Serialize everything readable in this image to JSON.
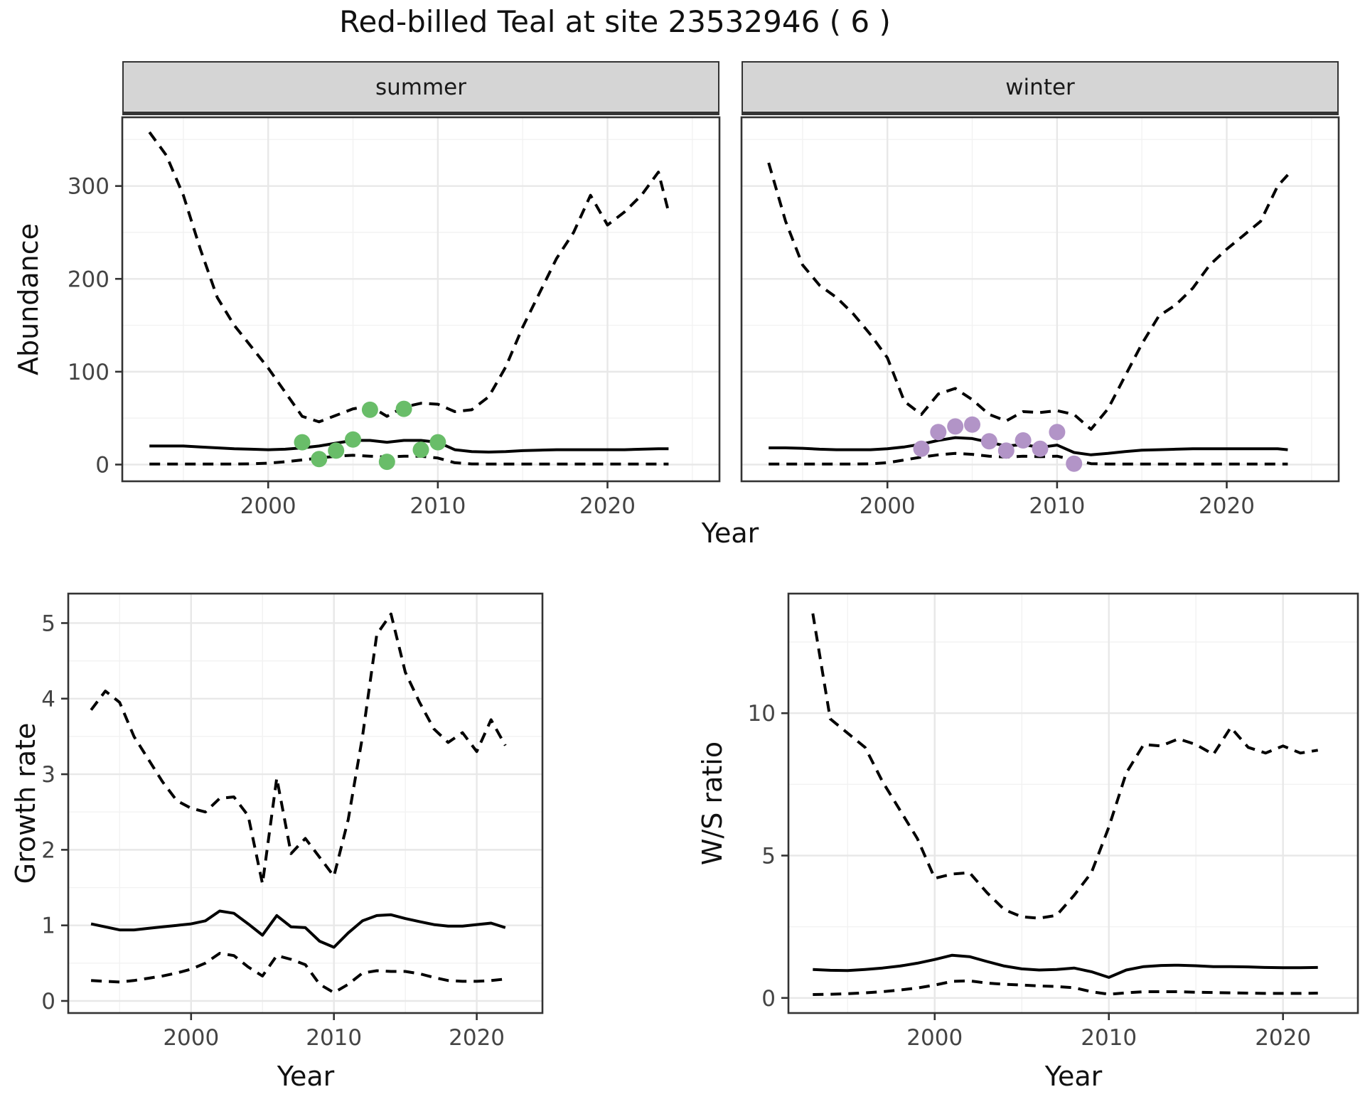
{
  "title": "Red-billed Teal at site 23532946 ( 6 )",
  "colors": {
    "summer_points": "#69bd69",
    "winter_points": "#b294c7",
    "line": "#000000",
    "strip_bg": "#d5d5d5",
    "panel_border": "#333333",
    "grid_major": "#e8e8e8",
    "grid_minor": "#f2f2f2",
    "tick_text": "#444444",
    "title_text": "#111111"
  },
  "chart_data": [
    {
      "id": "abundance-summer",
      "type": "line",
      "facet_label": "summer",
      "xlabel": "Year",
      "ylabel": "Abundance",
      "xlim": [
        1991.4,
        2026.6
      ],
      "ylim": [
        -18,
        374
      ],
      "x_ticks": [
        2000,
        2010,
        2020
      ],
      "y_ticks": [
        0,
        100,
        200,
        300
      ],
      "grid": true,
      "legend": "none",
      "series": [
        {
          "name": "upper-95ci",
          "style": "dashed",
          "x": [
            1993,
            1994,
            1995,
            1996,
            1997,
            1998,
            1999,
            2000,
            2001,
            2002,
            2003,
            2004,
            2005,
            2006,
            2007,
            2008,
            2009,
            2010,
            2011,
            2012,
            2013,
            2014,
            2015,
            2016,
            2017,
            2018,
            2019,
            2020,
            2021,
            2022,
            2023,
            2023.6
          ],
          "y": [
            358,
            333,
            290,
            232,
            180,
            150,
            127,
            104,
            78,
            52,
            46,
            53,
            60,
            63,
            52,
            62,
            66,
            65,
            57,
            59,
            73,
            105,
            148,
            185,
            222,
            250,
            290,
            258,
            272,
            290,
            315,
            272
          ]
        },
        {
          "name": "median",
          "style": "solid",
          "x": [
            1993,
            1994,
            1995,
            1996,
            1997,
            1998,
            1999,
            2000,
            2001,
            2002,
            2003,
            2004,
            2005,
            2006,
            2007,
            2008,
            2009,
            2010,
            2011,
            2012,
            2013,
            2014,
            2015,
            2016,
            2017,
            2018,
            2019,
            2020,
            2021,
            2022,
            2023,
            2023.6
          ],
          "y": [
            20,
            20,
            20,
            19,
            18,
            17,
            16.5,
            16,
            16.5,
            18,
            20,
            23,
            26,
            26,
            24,
            26,
            26,
            24,
            16,
            14,
            13.5,
            14,
            15,
            15.5,
            16,
            16,
            16,
            16,
            16,
            16.5,
            17,
            17
          ]
        },
        {
          "name": "lower-95ci",
          "style": "dashed",
          "x": [
            1993,
            1994,
            1995,
            1996,
            1997,
            1998,
            1999,
            2000,
            2001,
            2002,
            2003,
            2004,
            2005,
            2006,
            2007,
            2008,
            2009,
            2010,
            2011,
            2012,
            2013,
            2014,
            2015,
            2016,
            2017,
            2018,
            2019,
            2020,
            2021,
            2022,
            2023,
            2023.6
          ],
          "y": [
            0.5,
            0.5,
            0.5,
            0.5,
            0.5,
            0.6,
            0.8,
            1.5,
            3,
            5,
            7,
            9,
            10,
            9,
            8,
            9,
            9,
            7,
            2,
            0.7,
            0.5,
            0.5,
            0.5,
            0.5,
            0.5,
            0.5,
            0.5,
            0.5,
            0.5,
            0.5,
            0.5,
            0.5
          ]
        }
      ],
      "points": {
        "name": "observed-counts-summer",
        "color": "#69bd69",
        "x": [
          2002,
          2003,
          2004,
          2005,
          2006,
          2007,
          2008,
          2009,
          2010
        ],
        "y": [
          24,
          6,
          15,
          27,
          59,
          3,
          60,
          16,
          24
        ]
      }
    },
    {
      "id": "abundance-winter",
      "type": "line",
      "facet_label": "winter",
      "xlabel": "Year",
      "ylabel": "Abundance",
      "xlim": [
        1991.4,
        2026.6
      ],
      "ylim": [
        -18,
        374
      ],
      "x_ticks": [
        2000,
        2010,
        2020
      ],
      "y_ticks": [
        0,
        100,
        200,
        300
      ],
      "grid": true,
      "legend": "none",
      "series": [
        {
          "name": "upper-95ci",
          "style": "dashed",
          "x": [
            1993,
            1994,
            1995,
            1996,
            1997,
            1998,
            1999,
            2000,
            2001,
            2002,
            2003,
            2004,
            2005,
            2006,
            2007,
            2008,
            2009,
            2010,
            2011,
            2012,
            2013,
            2014,
            2015,
            2016,
            2017,
            2018,
            2019,
            2020,
            2021,
            2022,
            2023,
            2023.6
          ],
          "y": [
            325,
            262,
            215,
            193,
            180,
            162,
            140,
            115,
            68,
            54,
            76,
            82,
            70,
            54,
            47,
            57,
            56,
            58,
            54,
            38,
            60,
            95,
            130,
            160,
            172,
            190,
            215,
            232,
            247,
            262,
            300,
            312
          ]
        },
        {
          "name": "median",
          "style": "solid",
          "x": [
            1993,
            1994,
            1995,
            1996,
            1997,
            1998,
            1999,
            2000,
            2001,
            2002,
            2003,
            2004,
            2005,
            2006,
            2007,
            2008,
            2009,
            2010,
            2011,
            2012,
            2013,
            2014,
            2015,
            2016,
            2017,
            2018,
            2019,
            2020,
            2021,
            2022,
            2023,
            2023.6
          ],
          "y": [
            18,
            18,
            17.5,
            16.5,
            16,
            16,
            16,
            17,
            19,
            22,
            26,
            29,
            28,
            24,
            20,
            21.5,
            18.5,
            21,
            13,
            10.5,
            12,
            14,
            15.5,
            16,
            16.5,
            17,
            17,
            17,
            17,
            17,
            17,
            16
          ]
        },
        {
          "name": "lower-95ci",
          "style": "dashed",
          "x": [
            1993,
            1994,
            1995,
            1996,
            1997,
            1998,
            1999,
            2000,
            2001,
            2002,
            2003,
            2004,
            2005,
            2006,
            2007,
            2008,
            2009,
            2010,
            2011,
            2012,
            2013,
            2014,
            2015,
            2016,
            2017,
            2018,
            2019,
            2020,
            2021,
            2022,
            2023,
            2023.6
          ],
          "y": [
            0.5,
            0.5,
            0.5,
            0.5,
            0.5,
            0.6,
            0.8,
            2,
            5,
            8,
            10.5,
            12,
            11,
            9,
            8,
            9,
            8.5,
            9,
            5,
            1,
            0.5,
            0.5,
            0.5,
            0.5,
            0.5,
            0.5,
            0.5,
            0.5,
            0.5,
            0.5,
            0.5,
            0.5
          ]
        }
      ],
      "points": {
        "name": "observed-counts-winter",
        "color": "#b294c7",
        "x": [
          2002,
          2003,
          2004,
          2005,
          2006,
          2007,
          2008,
          2009,
          2010,
          2011
        ],
        "y": [
          17,
          35,
          41,
          43,
          25,
          15,
          26,
          17,
          35,
          1
        ]
      }
    },
    {
      "id": "growth-rate",
      "type": "line",
      "facet_label": "",
      "xlabel": "Year",
      "ylabel": "Growth rate",
      "xlim": [
        1991.4,
        2024.6
      ],
      "ylim": [
        -0.16,
        5.39
      ],
      "x_ticks": [
        2000,
        2010,
        2020
      ],
      "y_ticks": [
        0,
        1,
        2,
        3,
        4,
        5
      ],
      "grid": true,
      "legend": "none",
      "series": [
        {
          "name": "upper-95ci",
          "style": "dashed",
          "x": [
            1993,
            1994,
            1995,
            1996,
            1997,
            1998,
            1999,
            2000,
            2001,
            2002,
            2003,
            2004,
            2005,
            2006,
            2007,
            2008,
            2009,
            2010,
            2011,
            2012,
            2013,
            2014,
            2015,
            2016,
            2017,
            2018,
            2019,
            2020,
            2021,
            2022
          ],
          "y": [
            3.85,
            4.1,
            3.95,
            3.5,
            3.2,
            2.9,
            2.65,
            2.55,
            2.5,
            2.68,
            2.7,
            2.45,
            1.55,
            2.95,
            1.95,
            2.15,
            1.9,
            1.65,
            2.4,
            3.5,
            4.85,
            5.12,
            4.35,
            3.95,
            3.6,
            3.42,
            3.55,
            3.3,
            3.72,
            3.38
          ]
        },
        {
          "name": "median",
          "style": "solid",
          "x": [
            1993,
            1994,
            1995,
            1996,
            1997,
            1998,
            1999,
            2000,
            2001,
            2002,
            2003,
            2004,
            2005,
            2006,
            2007,
            2008,
            2009,
            2010,
            2011,
            2012,
            2013,
            2014,
            2015,
            2016,
            2017,
            2018,
            2019,
            2020,
            2021,
            2022
          ],
          "y": [
            1.02,
            0.98,
            0.94,
            0.94,
            0.96,
            0.98,
            1.0,
            1.02,
            1.06,
            1.19,
            1.16,
            1.02,
            0.87,
            1.13,
            0.98,
            0.97,
            0.79,
            0.71,
            0.9,
            1.06,
            1.13,
            1.14,
            1.09,
            1.05,
            1.01,
            0.99,
            0.99,
            1.01,
            1.03,
            0.97
          ]
        },
        {
          "name": "lower-95ci",
          "style": "dashed",
          "x": [
            1993,
            1994,
            1995,
            1996,
            1997,
            1998,
            1999,
            2000,
            2001,
            2002,
            2003,
            2004,
            2005,
            2006,
            2007,
            2008,
            2009,
            2010,
            2011,
            2012,
            2013,
            2014,
            2015,
            2016,
            2017,
            2018,
            2019,
            2020,
            2021,
            2022
          ],
          "y": [
            0.27,
            0.26,
            0.25,
            0.27,
            0.3,
            0.33,
            0.37,
            0.42,
            0.5,
            0.63,
            0.6,
            0.45,
            0.33,
            0.6,
            0.55,
            0.48,
            0.22,
            0.11,
            0.22,
            0.37,
            0.4,
            0.39,
            0.39,
            0.36,
            0.31,
            0.27,
            0.26,
            0.26,
            0.27,
            0.29
          ]
        }
      ],
      "points": null
    },
    {
      "id": "ws-ratio",
      "type": "line",
      "facet_label": "",
      "xlabel": "Year",
      "ylabel": "W/S ratio",
      "xlim": [
        1991.6,
        2024.3
      ],
      "ylim": [
        -0.53,
        14.2
      ],
      "x_ticks": [
        2000,
        2010,
        2020
      ],
      "y_ticks": [
        0,
        5,
        10
      ],
      "grid": true,
      "legend": "none",
      "series": [
        {
          "name": "upper-95ci",
          "style": "dashed",
          "x": [
            1993,
            1994,
            1995,
            1996,
            1997,
            1998,
            1999,
            2000,
            2001,
            2002,
            2003,
            2004,
            2005,
            2006,
            2007,
            2008,
            2009,
            2010,
            2011,
            2012,
            2013,
            2014,
            2015,
            2016,
            2017,
            2018,
            2019,
            2020,
            2021,
            2022
          ],
          "y": [
            13.5,
            9.8,
            9.3,
            8.8,
            7.6,
            6.6,
            5.6,
            4.2,
            4.35,
            4.4,
            3.7,
            3.1,
            2.85,
            2.8,
            2.9,
            3.6,
            4.4,
            6.0,
            7.9,
            8.9,
            8.85,
            9.1,
            8.9,
            8.55,
            9.5,
            8.8,
            8.6,
            8.85,
            8.6,
            8.7
          ]
        },
        {
          "name": "median",
          "style": "solid",
          "x": [
            1993,
            1994,
            1995,
            1996,
            1997,
            1998,
            1999,
            2000,
            2001,
            2002,
            2003,
            2004,
            2005,
            2006,
            2007,
            2008,
            2009,
            2010,
            2011,
            2012,
            2013,
            2014,
            2015,
            2016,
            2017,
            2018,
            2019,
            2020,
            2021,
            2022
          ],
          "y": [
            1.0,
            0.97,
            0.96,
            1.0,
            1.05,
            1.12,
            1.22,
            1.35,
            1.5,
            1.45,
            1.28,
            1.12,
            1.02,
            0.98,
            1.0,
            1.05,
            0.92,
            0.72,
            0.98,
            1.1,
            1.14,
            1.15,
            1.13,
            1.1,
            1.1,
            1.09,
            1.07,
            1.06,
            1.06,
            1.07
          ]
        },
        {
          "name": "lower-95ci",
          "style": "dashed",
          "x": [
            1993,
            1994,
            1995,
            1996,
            1997,
            1998,
            1999,
            2000,
            2001,
            2002,
            2003,
            2004,
            2005,
            2006,
            2007,
            2008,
            2009,
            2010,
            2011,
            2012,
            2013,
            2014,
            2015,
            2016,
            2017,
            2018,
            2019,
            2020,
            2021,
            2022
          ],
          "y": [
            0.12,
            0.13,
            0.15,
            0.18,
            0.22,
            0.28,
            0.35,
            0.45,
            0.58,
            0.6,
            0.52,
            0.48,
            0.45,
            0.42,
            0.4,
            0.36,
            0.22,
            0.13,
            0.18,
            0.22,
            0.22,
            0.22,
            0.2,
            0.19,
            0.18,
            0.17,
            0.16,
            0.16,
            0.16,
            0.17
          ]
        }
      ],
      "points": null
    }
  ]
}
